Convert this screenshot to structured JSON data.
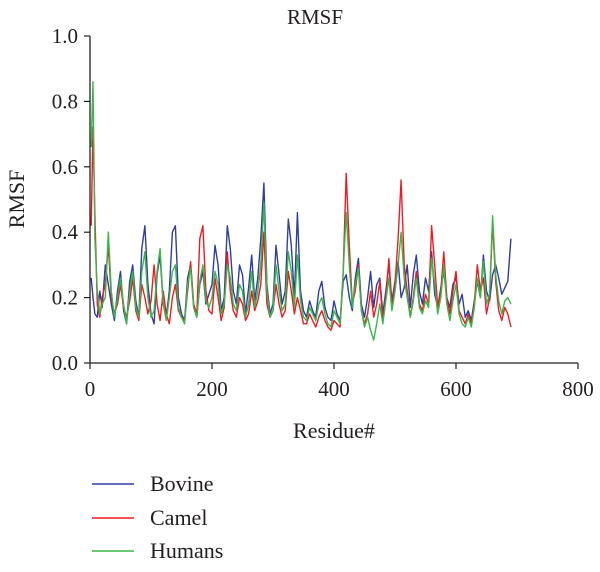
{
  "chart_data": {
    "type": "line",
    "title": "RMSF",
    "xlabel": "Residue#",
    "ylabel": "RMSF",
    "xlim": [
      0,
      800
    ],
    "ylim": [
      0.0,
      1.0
    ],
    "x_ticks": [
      "0",
      "200",
      "400",
      "600",
      "800"
    ],
    "y_ticks": [
      "0.0",
      "0.2",
      "0.4",
      "0.6",
      "0.8",
      "1.0"
    ],
    "grid": false,
    "legend_position": "bottom-left",
    "x": [
      2,
      5,
      8,
      12,
      16,
      20,
      25,
      30,
      35,
      40,
      45,
      50,
      55,
      60,
      65,
      70,
      75,
      80,
      85,
      90,
      95,
      100,
      105,
      110,
      115,
      120,
      125,
      130,
      135,
      140,
      145,
      150,
      155,
      160,
      165,
      170,
      175,
      180,
      185,
      190,
      195,
      200,
      205,
      210,
      215,
      220,
      225,
      230,
      235,
      240,
      245,
      250,
      255,
      260,
      265,
      270,
      275,
      280,
      285,
      290,
      295,
      300,
      305,
      310,
      315,
      320,
      325,
      330,
      335,
      340,
      345,
      350,
      355,
      360,
      365,
      370,
      375,
      380,
      385,
      390,
      395,
      400,
      405,
      410,
      415,
      420,
      425,
      430,
      435,
      440,
      445,
      450,
      455,
      460,
      465,
      470,
      475,
      480,
      485,
      490,
      495,
      500,
      505,
      510,
      515,
      520,
      525,
      530,
      535,
      540,
      545,
      550,
      555,
      560,
      565,
      570,
      575,
      580,
      585,
      590,
      595,
      600,
      605,
      610,
      615,
      620,
      625,
      630,
      635,
      640,
      645,
      650,
      655,
      660,
      665,
      670,
      675,
      680,
      685,
      690
    ],
    "series": [
      {
        "name": "Bovine",
        "color": "#2e3f9e",
        "values": [
          0.26,
          0.2,
          0.15,
          0.14,
          0.22,
          0.17,
          0.3,
          0.24,
          0.18,
          0.13,
          0.22,
          0.28,
          0.16,
          0.12,
          0.25,
          0.3,
          0.19,
          0.14,
          0.35,
          0.42,
          0.24,
          0.15,
          0.12,
          0.27,
          0.33,
          0.18,
          0.14,
          0.22,
          0.4,
          0.42,
          0.2,
          0.15,
          0.13,
          0.26,
          0.3,
          0.17,
          0.14,
          0.24,
          0.28,
          0.18,
          0.21,
          0.24,
          0.36,
          0.3,
          0.16,
          0.2,
          0.42,
          0.35,
          0.22,
          0.18,
          0.3,
          0.27,
          0.15,
          0.23,
          0.33,
          0.19,
          0.26,
          0.38,
          0.55,
          0.24,
          0.15,
          0.18,
          0.36,
          0.27,
          0.18,
          0.22,
          0.44,
          0.36,
          0.2,
          0.46,
          0.22,
          0.16,
          0.14,
          0.19,
          0.16,
          0.14,
          0.22,
          0.25,
          0.17,
          0.14,
          0.13,
          0.19,
          0.15,
          0.13,
          0.25,
          0.27,
          0.2,
          0.16,
          0.26,
          0.32,
          0.18,
          0.14,
          0.2,
          0.28,
          0.17,
          0.24,
          0.26,
          0.15,
          0.22,
          0.3,
          0.19,
          0.25,
          0.31,
          0.2,
          0.23,
          0.3,
          0.17,
          0.27,
          0.33,
          0.22,
          0.18,
          0.26,
          0.22,
          0.34,
          0.21,
          0.17,
          0.23,
          0.28,
          0.2,
          0.17,
          0.24,
          0.26,
          0.18,
          0.21,
          0.14,
          0.16,
          0.13,
          0.19,
          0.25,
          0.2,
          0.33,
          0.22,
          0.19,
          0.27,
          0.3,
          0.26,
          0.21,
          0.23,
          0.25,
          0.38
        ]
      },
      {
        "name": "Camel",
        "color": "#ec1c24",
        "values": [
          0.42,
          0.72,
          0.45,
          0.18,
          0.14,
          0.2,
          0.24,
          0.36,
          0.2,
          0.15,
          0.18,
          0.24,
          0.17,
          0.14,
          0.19,
          0.26,
          0.16,
          0.13,
          0.24,
          0.2,
          0.15,
          0.19,
          0.3,
          0.18,
          0.13,
          0.22,
          0.15,
          0.12,
          0.2,
          0.24,
          0.16,
          0.14,
          0.13,
          0.22,
          0.31,
          0.18,
          0.15,
          0.38,
          0.42,
          0.22,
          0.16,
          0.15,
          0.26,
          0.2,
          0.13,
          0.17,
          0.34,
          0.22,
          0.16,
          0.14,
          0.2,
          0.18,
          0.13,
          0.15,
          0.22,
          0.16,
          0.19,
          0.24,
          0.4,
          0.18,
          0.14,
          0.16,
          0.24,
          0.18,
          0.14,
          0.16,
          0.28,
          0.22,
          0.15,
          0.2,
          0.16,
          0.12,
          0.12,
          0.15,
          0.13,
          0.11,
          0.14,
          0.16,
          0.13,
          0.11,
          0.1,
          0.13,
          0.12,
          0.11,
          0.28,
          0.58,
          0.36,
          0.18,
          0.22,
          0.3,
          0.16,
          0.12,
          0.15,
          0.22,
          0.14,
          0.18,
          0.25,
          0.13,
          0.2,
          0.32,
          0.17,
          0.24,
          0.38,
          0.56,
          0.3,
          0.22,
          0.14,
          0.2,
          0.28,
          0.18,
          0.16,
          0.21,
          0.18,
          0.42,
          0.3,
          0.17,
          0.22,
          0.34,
          0.2,
          0.15,
          0.22,
          0.28,
          0.16,
          0.14,
          0.12,
          0.15,
          0.12,
          0.18,
          0.3,
          0.22,
          0.26,
          0.15,
          0.2,
          0.43,
          0.25,
          0.16,
          0.13,
          0.17,
          0.15,
          0.11
        ]
      },
      {
        "name": "Humans",
        "color": "#3cb54a",
        "values": [
          0.66,
          0.86,
          0.38,
          0.22,
          0.15,
          0.18,
          0.2,
          0.4,
          0.22,
          0.14,
          0.2,
          0.26,
          0.18,
          0.12,
          0.22,
          0.28,
          0.17,
          0.14,
          0.28,
          0.34,
          0.2,
          0.14,
          0.16,
          0.28,
          0.35,
          0.18,
          0.13,
          0.2,
          0.28,
          0.3,
          0.17,
          0.14,
          0.12,
          0.24,
          0.29,
          0.17,
          0.14,
          0.25,
          0.3,
          0.19,
          0.17,
          0.2,
          0.28,
          0.24,
          0.15,
          0.18,
          0.3,
          0.26,
          0.18,
          0.16,
          0.24,
          0.22,
          0.14,
          0.18,
          0.28,
          0.17,
          0.22,
          0.3,
          0.49,
          0.22,
          0.14,
          0.16,
          0.3,
          0.22,
          0.16,
          0.18,
          0.34,
          0.28,
          0.17,
          0.33,
          0.19,
          0.14,
          0.13,
          0.17,
          0.15,
          0.13,
          0.18,
          0.2,
          0.15,
          0.12,
          0.11,
          0.16,
          0.14,
          0.12,
          0.28,
          0.46,
          0.3,
          0.17,
          0.24,
          0.29,
          0.16,
          0.11,
          0.14,
          0.1,
          0.07,
          0.12,
          0.18,
          0.12,
          0.19,
          0.26,
          0.16,
          0.22,
          0.3,
          0.4,
          0.26,
          0.2,
          0.14,
          0.19,
          0.26,
          0.17,
          0.15,
          0.19,
          0.17,
          0.32,
          0.24,
          0.15,
          0.2,
          0.3,
          0.18,
          0.13,
          0.19,
          0.24,
          0.15,
          0.12,
          0.11,
          0.14,
          0.11,
          0.17,
          0.26,
          0.2,
          0.31,
          0.18,
          0.21,
          0.45,
          0.27,
          0.19,
          0.15,
          0.19,
          0.2,
          0.18
        ]
      }
    ]
  }
}
